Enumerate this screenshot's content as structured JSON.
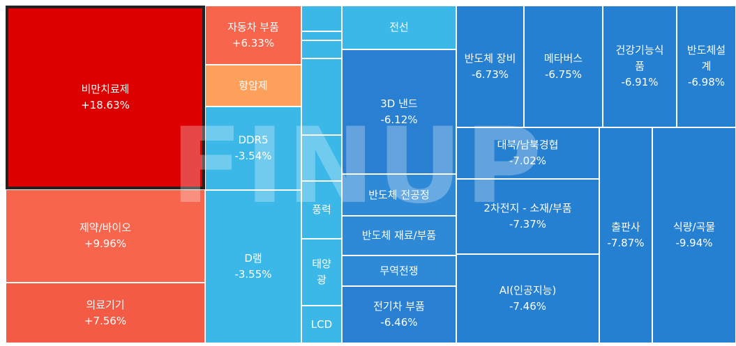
{
  "chart_data": {
    "type": "treemap",
    "watermark": "FINUP",
    "tiles": [
      {
        "name": "비만치료제",
        "change": "+18.63%",
        "value": 18.63,
        "color": "#dd0000",
        "selected": true
      },
      {
        "name": "자동차 부품",
        "change": "+6.33%",
        "value": 6.33,
        "color": "#f7654d"
      },
      {
        "name": "항암제",
        "change": "",
        "value": null,
        "color": "#fda05c"
      },
      {
        "name": "DDR5",
        "change": "-3.54%",
        "value": -3.54,
        "color": "#3bb8e8"
      },
      {
        "name": "D램",
        "change": "-3.55%",
        "value": -3.55,
        "color": "#3bb8e8"
      },
      {
        "name": "제약/바이오",
        "change": "+9.96%",
        "value": 9.96,
        "color": "#f7654d"
      },
      {
        "name": "의료기기",
        "change": "+7.56%",
        "value": 7.56,
        "color": "#f35b45"
      },
      {
        "name": "",
        "change": "",
        "value": null,
        "color": "#3bb8e8"
      },
      {
        "name": "",
        "change": "",
        "value": null,
        "color": "#3bb8e8"
      },
      {
        "name": "",
        "change": "",
        "value": null,
        "color": "#3bb8e8"
      },
      {
        "name": "",
        "change": "",
        "value": null,
        "color": "#3bb8e8"
      },
      {
        "name": "",
        "change": "",
        "value": null,
        "color": "#3bb8e8"
      },
      {
        "name": "풍력",
        "change": "",
        "value": null,
        "color": "#3bb8e8"
      },
      {
        "name": "태양\n광",
        "change": "",
        "value": null,
        "color": "#3bb8e8"
      },
      {
        "name": "LCD",
        "change": "",
        "value": null,
        "color": "#3bb8e8"
      },
      {
        "name": "전선",
        "change": "",
        "value": null,
        "color": "#3bb8e8"
      },
      {
        "name": "3D 낸드",
        "change": "-6.12%",
        "value": -6.12,
        "color": "#2980d2"
      },
      {
        "name": "반도체 전공정",
        "change": "",
        "value": null,
        "color": "#2e89d6"
      },
      {
        "name": "반도체 재료/부품",
        "change": "",
        "value": null,
        "color": "#2e89d6"
      },
      {
        "name": "무역전쟁",
        "change": "",
        "value": null,
        "color": "#2e89d6"
      },
      {
        "name": "전기차 부품",
        "change": "-6.46%",
        "value": -6.46,
        "color": "#2980d2"
      },
      {
        "name": "반도체 장비",
        "change": "-6.73%",
        "value": -6.73,
        "color": "#2680d2"
      },
      {
        "name": "메타버스",
        "change": "-6.75%",
        "value": -6.75,
        "color": "#2680d2"
      },
      {
        "name": "건강기능식\n품",
        "change": "-6.91%",
        "value": -6.91,
        "color": "#2680d2"
      },
      {
        "name": "반도체설\n계",
        "change": "-6.98%",
        "value": -6.98,
        "color": "#2680d2"
      },
      {
        "name": "대북/남북경협",
        "change": "-7.02%",
        "value": -7.02,
        "color": "#2680d2"
      },
      {
        "name": "2차전지 - 소재/부품",
        "change": "-7.37%",
        "value": -7.37,
        "color": "#2680d2"
      },
      {
        "name": "AI(인공지능)",
        "change": "-7.46%",
        "value": -7.46,
        "color": "#2680d2"
      },
      {
        "name": "출판사",
        "change": "-7.87%",
        "value": -7.87,
        "color": "#2680d2"
      },
      {
        "name": "식량/곡물",
        "change": "-9.94%",
        "value": -9.94,
        "color": "#2680d2"
      }
    ]
  }
}
